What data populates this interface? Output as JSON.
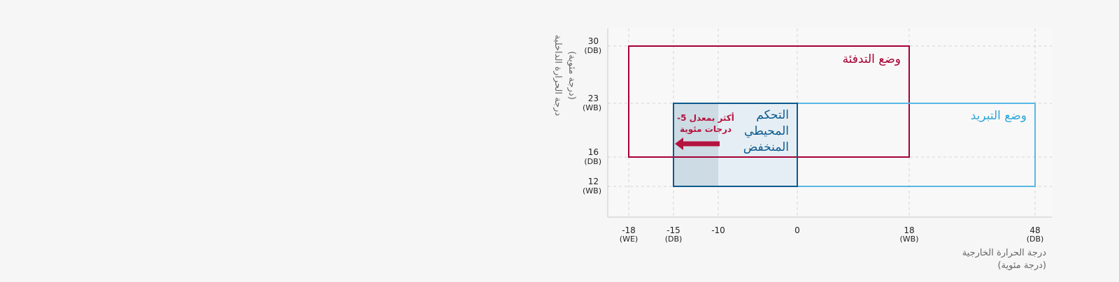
{
  "chart_data": {
    "type": "diagram",
    "x_axis": {
      "label_lines": [
        "درجة الحرارة الخارجية",
        "(درجة مئوية)"
      ],
      "ticks": [
        {
          "value": -18,
          "label": "-18",
          "sub": "(WE)"
        },
        {
          "value": -15,
          "label": "-15",
          "sub": "(DB)"
        },
        {
          "value": -10,
          "label": "-10",
          "sub": ""
        },
        {
          "value": 0,
          "label": "0",
          "sub": ""
        },
        {
          "value": 18,
          "label": "18",
          "sub": "(WB)"
        },
        {
          "value": 48,
          "label": "48",
          "sub": "(DB)"
        }
      ]
    },
    "y_axis": {
      "label_lines": [
        "درجة الحرارة الداخلية",
        "(درجة مئوية)"
      ],
      "ticks": [
        {
          "value": 30,
          "label": "30",
          "sub": "(DB)"
        },
        {
          "value": 23,
          "label": "23",
          "sub": "(WB)"
        },
        {
          "value": 16,
          "label": "16",
          "sub": "(DB)"
        },
        {
          "value": 12,
          "label": "12",
          "sub": "(WB)"
        }
      ]
    },
    "grid": true,
    "regions": [
      {
        "id": "heating",
        "label_lines": [
          "وضع التدفئة"
        ],
        "x": [
          -18,
          18
        ],
        "y": [
          16,
          30
        ],
        "stroke": "#a50034",
        "fill": "none",
        "label_color": "#a50034"
      },
      {
        "id": "cooling",
        "label_lines": [
          "وضع التبريد"
        ],
        "x": [
          -15,
          48
        ],
        "y": [
          12,
          23
        ],
        "stroke": "#55b9e4",
        "fill": "none",
        "label_color": "#2fa6da"
      },
      {
        "id": "low-ambient",
        "label_lines": [
          "التحكم",
          "المحيطي",
          "المنخفض"
        ],
        "x": [
          -15,
          0
        ],
        "y": [
          12,
          23
        ],
        "stroke": "#0b5a8f",
        "fill": "#e5eef4",
        "label_color": "#0b5a8f"
      },
      {
        "id": "extended",
        "label_lines": [],
        "x": [
          -15,
          -10
        ],
        "y": [
          12,
          23
        ],
        "stroke": "none",
        "fill": "#cddbe4",
        "label_color": ""
      }
    ],
    "annotation": {
      "text_lines": [
        "-أكثر بمعدل 5",
        "درجات مئوية"
      ],
      "color": "#b5133f",
      "arrow_from_x": -10,
      "arrow_to_x": -15
    }
  }
}
